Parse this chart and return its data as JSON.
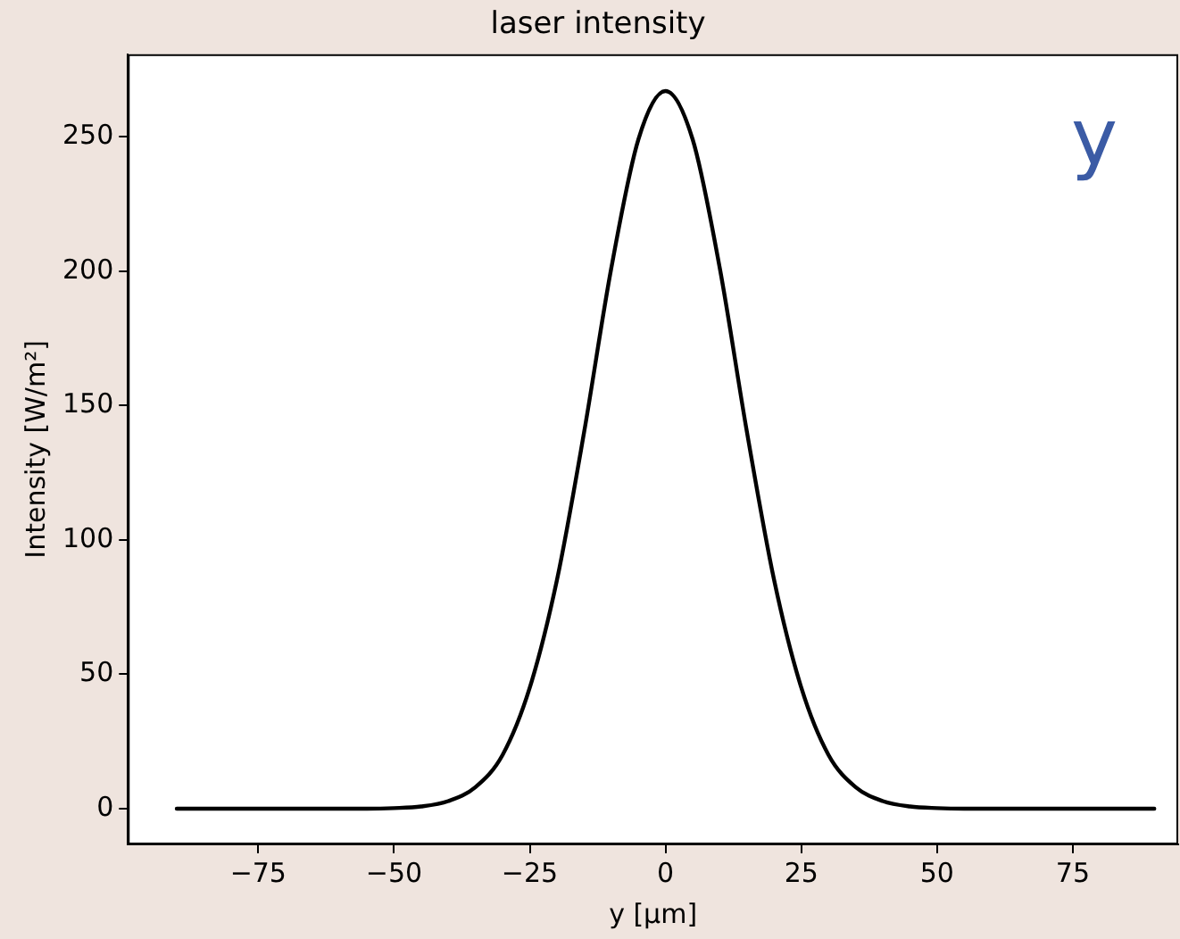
{
  "chart_data": {
    "type": "line",
    "title": "laser intensity",
    "xlabel": "y [µm]",
    "ylabel": "Intensity [W/m²]",
    "annotations": [
      "y"
    ],
    "x": [
      -90,
      -80,
      -70,
      -60,
      -55,
      -50,
      -45,
      -40,
      -35,
      -30,
      -25,
      -20,
      -15,
      -10,
      -5,
      0,
      5,
      10,
      15,
      20,
      25,
      30,
      35,
      40,
      45,
      50,
      55,
      60,
      70,
      80,
      90
    ],
    "series": [
      {
        "color": "#000000",
        "values": [
          0,
          0,
          0,
          0,
          0,
          0.2,
          0.8,
          2.8,
          8,
          20,
          45,
          85,
          140,
          201,
          249,
          267,
          249,
          201,
          140,
          85,
          45,
          20,
          8,
          2.8,
          0.8,
          0.2,
          0,
          0,
          0,
          0,
          0
        ]
      }
    ],
    "xlim": [
      -99,
      94.4
    ],
    "ylim": [
      -13.3,
      280.7
    ],
    "xticks": [
      {
        "value": -75,
        "label": "−75"
      },
      {
        "value": -50,
        "label": "−50"
      },
      {
        "value": -25,
        "label": "−25"
      },
      0,
      25,
      50,
      75
    ],
    "yticks": [
      0,
      50,
      100,
      150,
      200,
      250
    ],
    "grid": false,
    "legend": false,
    "marker": "none",
    "line_style": "solid"
  }
}
